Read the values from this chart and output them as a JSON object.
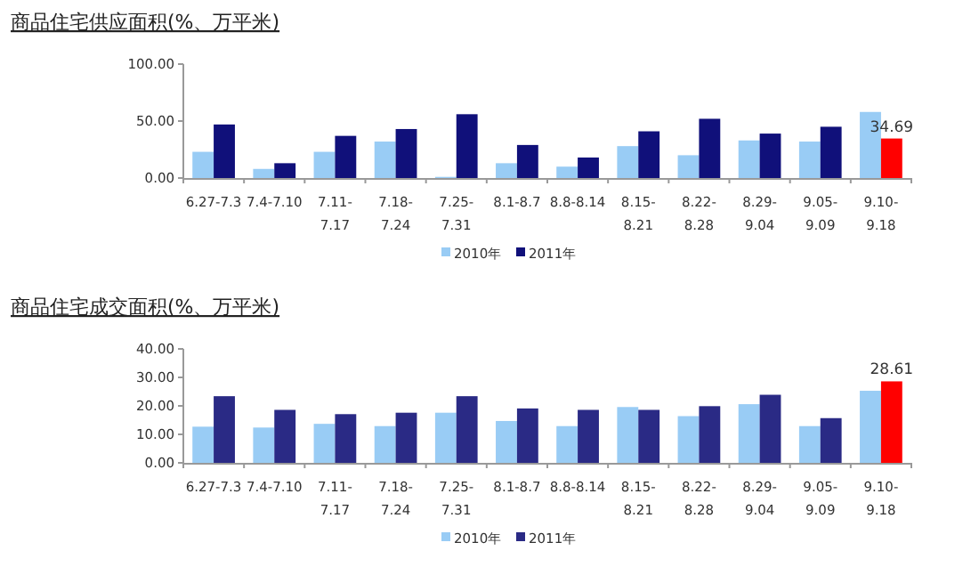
{
  "chart_data": [
    {
      "type": "bar",
      "title": "商品住宅供应面积(%、万平米)",
      "categories": [
        "6.27-7.3",
        "7.4-7.10",
        "7.11-7.17",
        "7.18-7.24",
        "7.25-7.31",
        "8.1-8.7",
        "8.8-8.14",
        "8.15-8.21",
        "8.22-8.28",
        "8.29-9.04",
        "9.05-9.09",
        "9.10-9.18"
      ],
      "series": [
        {
          "name": "2010年",
          "color": "#99ccf5",
          "values": [
            23,
            8,
            23,
            32,
            1,
            13,
            10,
            28,
            20,
            33,
            32,
            58
          ]
        },
        {
          "name": "2011年",
          "color": "#10107a",
          "colors": [
            "#10107a",
            "#10107a",
            "#10107a",
            "#10107a",
            "#10107a",
            "#10107a",
            "#10107a",
            "#10107a",
            "#10107a",
            "#10107a",
            "#10107a",
            "#ff0000"
          ],
          "values": [
            47,
            13,
            37,
            43,
            56,
            29,
            18,
            41,
            52,
            39,
            45,
            34.69
          ],
          "value_labels": [
            null,
            null,
            null,
            null,
            null,
            null,
            null,
            null,
            null,
            null,
            null,
            "34.69"
          ]
        }
      ],
      "ylim": [
        0,
        100
      ],
      "yticks": [
        {
          "value": 0,
          "label": "0.00"
        },
        {
          "value": 50,
          "label": "50.00"
        },
        {
          "value": 100,
          "label": "100.00"
        }
      ],
      "legend": "bottom",
      "grid": false
    },
    {
      "type": "bar",
      "title": "商品住宅成交面积(%、万平米)",
      "categories": [
        "6.27-7.3",
        "7.4-7.10",
        "7.11-7.17",
        "7.18-7.24",
        "7.25-7.31",
        "8.1-8.7",
        "8.8-8.14",
        "8.15-8.21",
        "8.22-8.28",
        "8.29-9.04",
        "9.05-9.09",
        "9.10-9.18"
      ],
      "series": [
        {
          "name": "2010年",
          "color": "#99ccf5",
          "values": [
            12.7,
            12.4,
            13.7,
            12.9,
            17.6,
            14.7,
            12.9,
            19.6,
            16.4,
            20.6,
            12.9,
            25.3
          ]
        },
        {
          "name": "2011年",
          "color": "#2a2a85",
          "colors": [
            "#2a2a85",
            "#2a2a85",
            "#2a2a85",
            "#2a2a85",
            "#2a2a85",
            "#2a2a85",
            "#2a2a85",
            "#2a2a85",
            "#2a2a85",
            "#2a2a85",
            "#2a2a85",
            "#ff0000"
          ],
          "values": [
            23.4,
            18.6,
            17.1,
            17.6,
            23.4,
            19.1,
            18.6,
            18.6,
            19.9,
            23.9,
            15.7,
            28.61
          ],
          "value_labels": [
            null,
            null,
            null,
            null,
            null,
            null,
            null,
            null,
            null,
            null,
            null,
            "28.61"
          ]
        }
      ],
      "ylim": [
        0,
        40
      ],
      "yticks": [
        {
          "value": 0,
          "label": "0.00"
        },
        {
          "value": 10,
          "label": "10.00"
        },
        {
          "value": 20,
          "label": "20.00"
        },
        {
          "value": 30,
          "label": "30.00"
        },
        {
          "value": 40,
          "label": "40.00"
        }
      ],
      "legend": "bottom",
      "grid": false
    }
  ]
}
